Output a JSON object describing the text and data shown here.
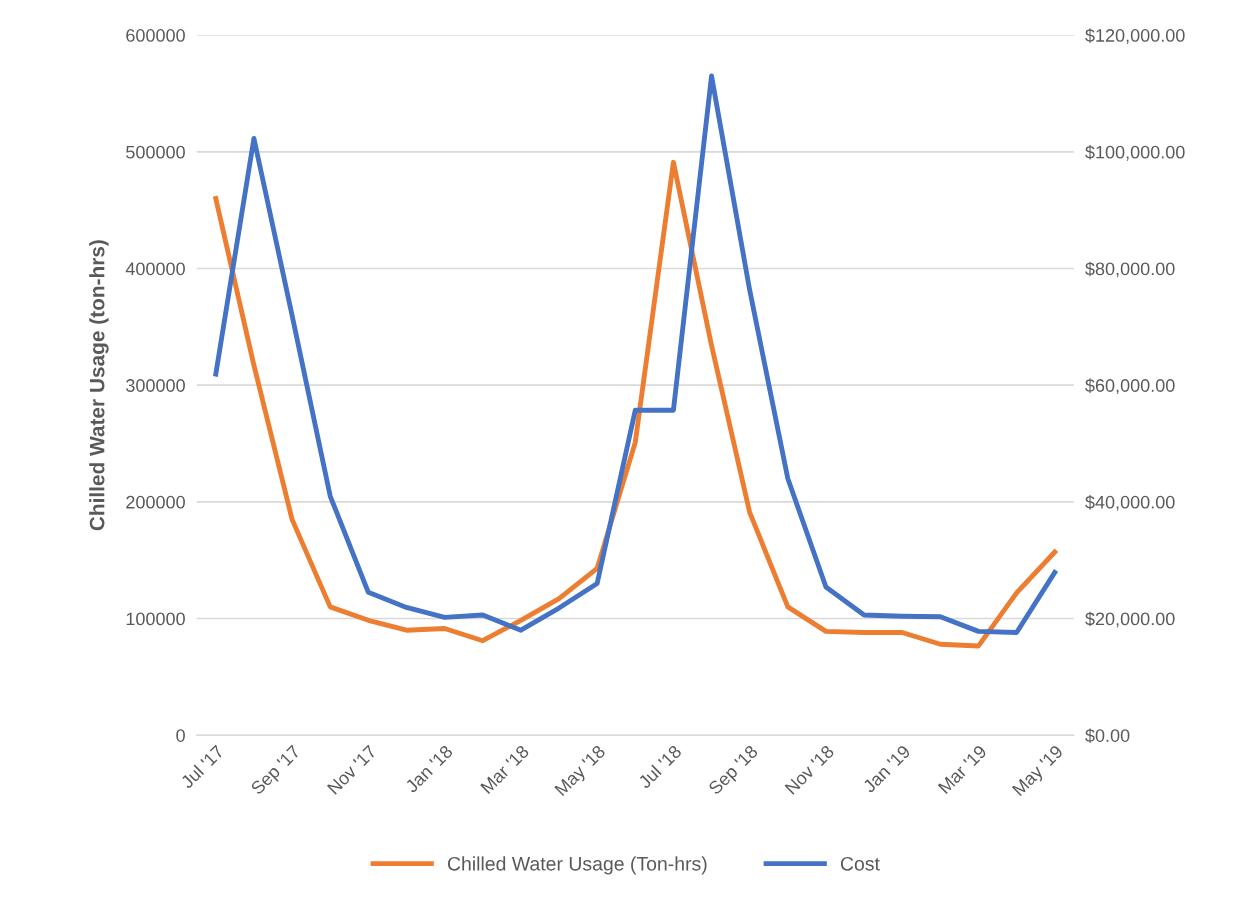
{
  "chart_data": {
    "type": "line",
    "ylabel": "Chilled Water Usage (ton-hrs)",
    "categories": [
      "Jul '17",
      null,
      "Sep '17",
      null,
      "Nov '17",
      null,
      "Jan '18",
      null,
      "Mar '18",
      null,
      "May '18",
      null,
      "Jul '18",
      null,
      "Sep '18",
      null,
      "Nov '18",
      null,
      "Jan '19",
      null,
      "Mar '19",
      null,
      "May '19"
    ],
    "series": [
      {
        "name": "Chilled Water Usage (Ton-hrs)",
        "color": "#ed7d31",
        "values": [
          460000,
          317000,
          185000,
          110000,
          98500,
          90000,
          91500,
          81000,
          98500,
          117000,
          143000,
          251000,
          491000,
          334000,
          191000,
          110000,
          89000,
          88000,
          88000,
          78000,
          76500,
          122000,
          157000
        ]
      },
      {
        "name": "Cost",
        "color": "#4472c4",
        "axis": "y2",
        "values": [
          61900,
          102300,
          72000,
          41000,
          24500,
          21900,
          20200,
          20600,
          18000,
          21800,
          26000,
          55700,
          55700,
          113000,
          76300,
          44000,
          25400,
          20600,
          20400,
          20300,
          17800,
          17600,
          27900
        ]
      }
    ],
    "ylim": [
      0,
      600000
    ],
    "yticks": [
      0,
      100000,
      200000,
      300000,
      400000,
      500000,
      600000
    ],
    "y2lim": [
      0,
      120000
    ],
    "y2ticks": [
      {
        "value": 0,
        "label": "$0.00"
      },
      {
        "value": 20000,
        "label": "$20,000.00"
      },
      {
        "value": 40000,
        "label": "$40,000.00"
      },
      {
        "value": 60000,
        "label": "$60,000.00"
      },
      {
        "value": 80000,
        "label": "$80,000.00"
      },
      {
        "value": 100000,
        "label": "$100,000.00"
      },
      {
        "value": 120000,
        "label": "$120,000.00"
      }
    ],
    "grid": "y",
    "legend": "bottom",
    "marker": "none",
    "line_style": "solid"
  }
}
